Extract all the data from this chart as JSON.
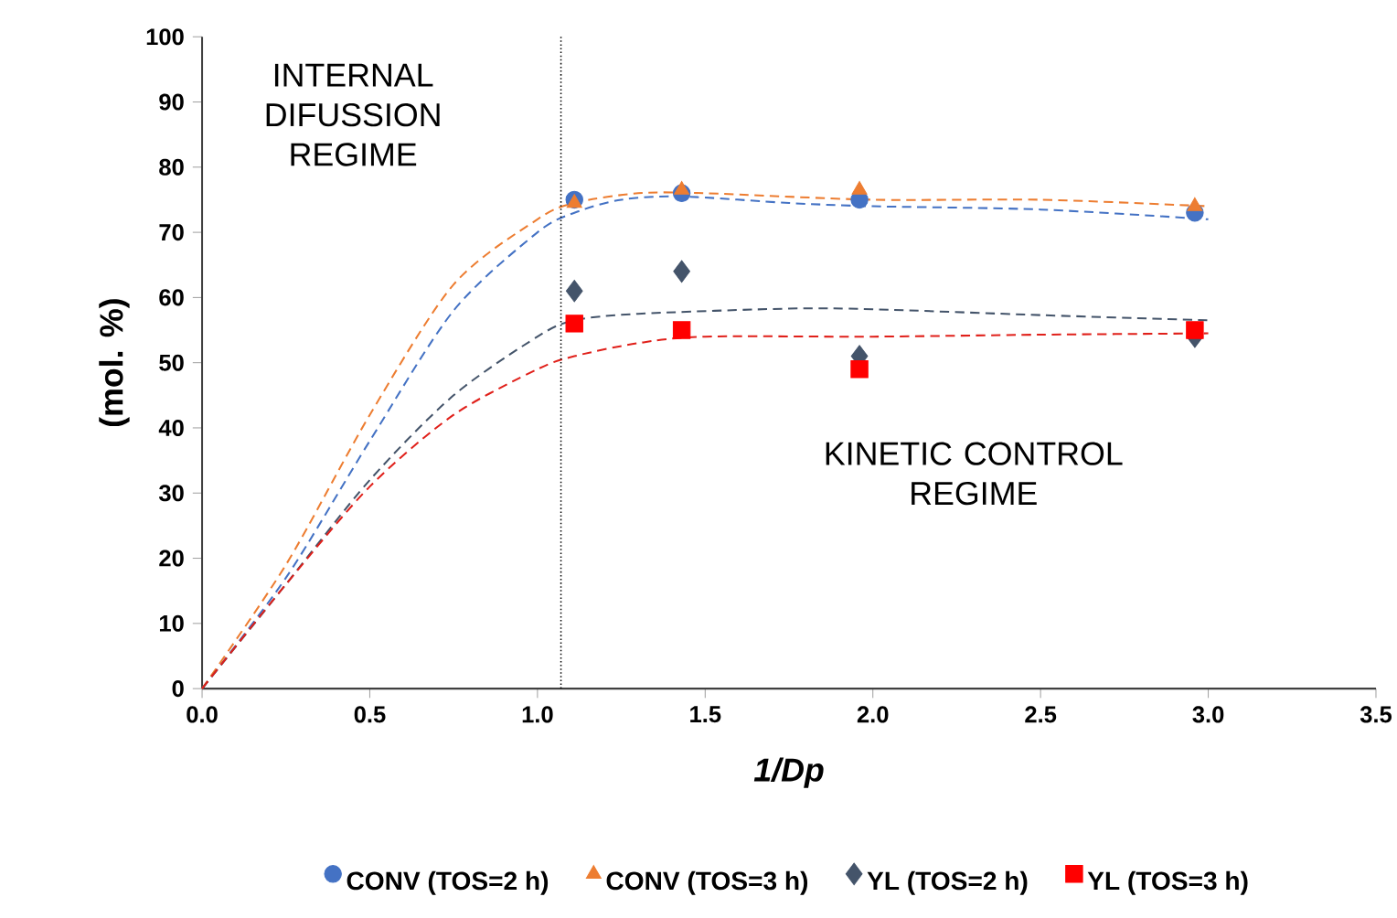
{
  "chart_data": {
    "type": "scatter",
    "xlabel": "1/Dp",
    "ylabel": "(mol. %)",
    "xlim": [
      0,
      3.5
    ],
    "ylim": [
      0,
      100
    ],
    "xticks": [
      {
        "value": 0,
        "label": "0.0"
      },
      {
        "value": 0.5,
        "label": "0.5"
      },
      {
        "value": 1,
        "label": "1.0"
      },
      {
        "value": 1.5,
        "label": "1.5"
      },
      {
        "value": 2,
        "label": "2.0"
      },
      {
        "value": 2.5,
        "label": "2.5"
      },
      {
        "value": 3,
        "label": "3.0"
      },
      {
        "value": 3.5,
        "label": "3.5"
      }
    ],
    "yticks": [
      0,
      10,
      20,
      30,
      40,
      50,
      60,
      70,
      80,
      90,
      100
    ],
    "legend": "bottom",
    "grid": false,
    "annotations": [
      "INTERNAL DIFUSSION REGIME",
      "KINETIC  CONTROL REGIME"
    ],
    "ref_lines": [
      {
        "axis": "x",
        "value": 1.07,
        "color": "#000000",
        "line_style": "dotted"
      }
    ],
    "series": [
      {
        "type": "line",
        "color": "#4472c4",
        "line_style": "dashed",
        "marker": "none",
        "x": [
          0,
          0.25,
          0.5,
          0.75,
          1.0,
          1.11,
          1.25,
          1.43,
          1.75,
          2.0,
          2.5,
          3.0
        ],
        "values": [
          0,
          17,
          38,
          58,
          70,
          73,
          75,
          75.5,
          74.5,
          74,
          73.5,
          72
        ]
      },
      {
        "type": "line",
        "color": "#ed7d31",
        "line_style": "dashed",
        "marker": "none",
        "x": [
          0,
          0.25,
          0.5,
          0.75,
          1.0,
          1.11,
          1.3,
          1.5,
          2.0,
          2.5,
          3.0
        ],
        "values": [
          0,
          19,
          42,
          62,
          72,
          74.5,
          76,
          76,
          75,
          75,
          74
        ]
      },
      {
        "type": "line",
        "color": "#44546a",
        "line_style": "dashed",
        "marker": "none",
        "x": [
          0,
          0.25,
          0.5,
          0.75,
          1.0,
          1.11,
          1.3,
          1.75,
          2.0,
          2.5,
          3.0
        ],
        "values": [
          0,
          16,
          32,
          45,
          54,
          56.5,
          57.5,
          58.3,
          58.2,
          57.3,
          56.5
        ]
      },
      {
        "type": "line",
        "color": "#e0201a",
        "line_style": "dashed",
        "marker": "none",
        "x": [
          0,
          0.25,
          0.5,
          0.75,
          1.0,
          1.11,
          1.3,
          1.5,
          2.0,
          2.5,
          3.0
        ],
        "values": [
          0,
          16,
          31,
          42,
          49,
          51,
          53,
          54,
          54,
          54.3,
          54.5
        ]
      },
      {
        "name": "CONV (TOS=2 h)",
        "color": "#4472c4",
        "marker": "circle",
        "x": [
          1.11,
          1.43,
          1.96,
          2.96
        ],
        "values": [
          75,
          76,
          75,
          73
        ]
      },
      {
        "name": "CONV (TOS=3 h)",
        "color": "#ed7d31",
        "marker": "triangle",
        "x": [
          1.11,
          1.43,
          1.96,
          2.96
        ],
        "values": [
          74.5,
          76.5,
          76.5,
          74
        ]
      },
      {
        "name": "YL (TOS=2 h)",
        "color": "#44546a",
        "marker": "diamond",
        "x": [
          1.11,
          1.43,
          1.96,
          2.96
        ],
        "values": [
          61,
          64,
          51,
          54
        ]
      },
      {
        "name": "YL (TOS=3 h)",
        "color": "#ff0000",
        "marker": "square",
        "x": [
          1.11,
          1.43,
          1.96,
          2.96
        ],
        "values": [
          56,
          55,
          49,
          55
        ]
      }
    ]
  }
}
